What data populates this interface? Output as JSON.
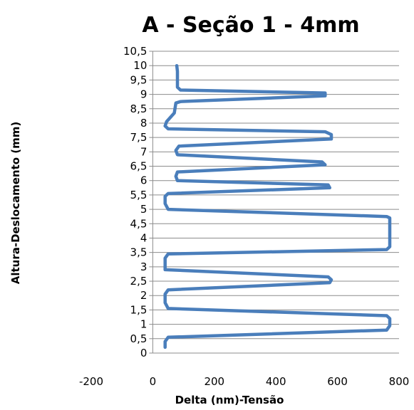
{
  "chart_data": {
    "type": "line",
    "title": "A - Seção 1 - 4mm",
    "xlabel": "Delta (nm)-Tensão",
    "ylabel": "Altura-Deslocamento  (mm)",
    "xlim": [
      -200,
      800
    ],
    "ylim": [
      0,
      10.5
    ],
    "x_ticks": [
      "-200",
      "0",
      "200",
      "400",
      "600",
      "800"
    ],
    "y_ticks": [
      "0",
      "0,5",
      "1",
      "1,5",
      "2",
      "2,5",
      "3",
      "3,5",
      "4",
      "4,5",
      "5",
      "5,5",
      "6",
      "6,5",
      "7",
      "7,5",
      "8",
      "8,5",
      "9",
      "9,5",
      "10",
      "10,5"
    ],
    "grid": "horizontal",
    "legend": "none",
    "line_color": "#4a7ebb",
    "series": [
      {
        "points": [
          [
            40,
            0.2
          ],
          [
            40,
            0.4
          ],
          [
            50,
            0.55
          ],
          [
            760,
            0.8
          ],
          [
            770,
            0.95
          ],
          [
            770,
            1.2
          ],
          [
            760,
            1.3
          ],
          [
            50,
            1.55
          ],
          [
            40,
            1.75
          ],
          [
            40,
            2.05
          ],
          [
            50,
            2.2
          ],
          [
            575,
            2.45
          ],
          [
            580,
            2.55
          ],
          [
            570,
            2.65
          ],
          [
            40,
            2.9
          ],
          [
            40,
            3.3
          ],
          [
            50,
            3.45
          ],
          [
            760,
            3.6
          ],
          [
            770,
            3.7
          ],
          [
            770,
            4.0
          ],
          [
            770,
            4.4
          ],
          [
            770,
            4.7
          ],
          [
            760,
            4.75
          ],
          [
            50,
            5.0
          ],
          [
            40,
            5.2
          ],
          [
            40,
            5.45
          ],
          [
            50,
            5.55
          ],
          [
            575,
            5.75
          ],
          [
            570,
            5.85
          ],
          [
            80,
            6.0
          ],
          [
            75,
            6.15
          ],
          [
            80,
            6.3
          ],
          [
            560,
            6.55
          ],
          [
            550,
            6.65
          ],
          [
            80,
            6.9
          ],
          [
            75,
            7.05
          ],
          [
            85,
            7.2
          ],
          [
            580,
            7.45
          ],
          [
            580,
            7.6
          ],
          [
            560,
            7.7
          ],
          [
            50,
            7.8
          ],
          [
            40,
            7.9
          ],
          [
            45,
            8.05
          ],
          [
            70,
            8.35
          ],
          [
            75,
            8.7
          ],
          [
            90,
            8.75
          ],
          [
            560,
            8.95
          ],
          [
            560,
            9.05
          ],
          [
            90,
            9.15
          ],
          [
            80,
            9.25
          ],
          [
            80,
            9.6
          ],
          [
            80,
            9.8
          ],
          [
            78,
            10.0
          ]
        ]
      }
    ]
  }
}
